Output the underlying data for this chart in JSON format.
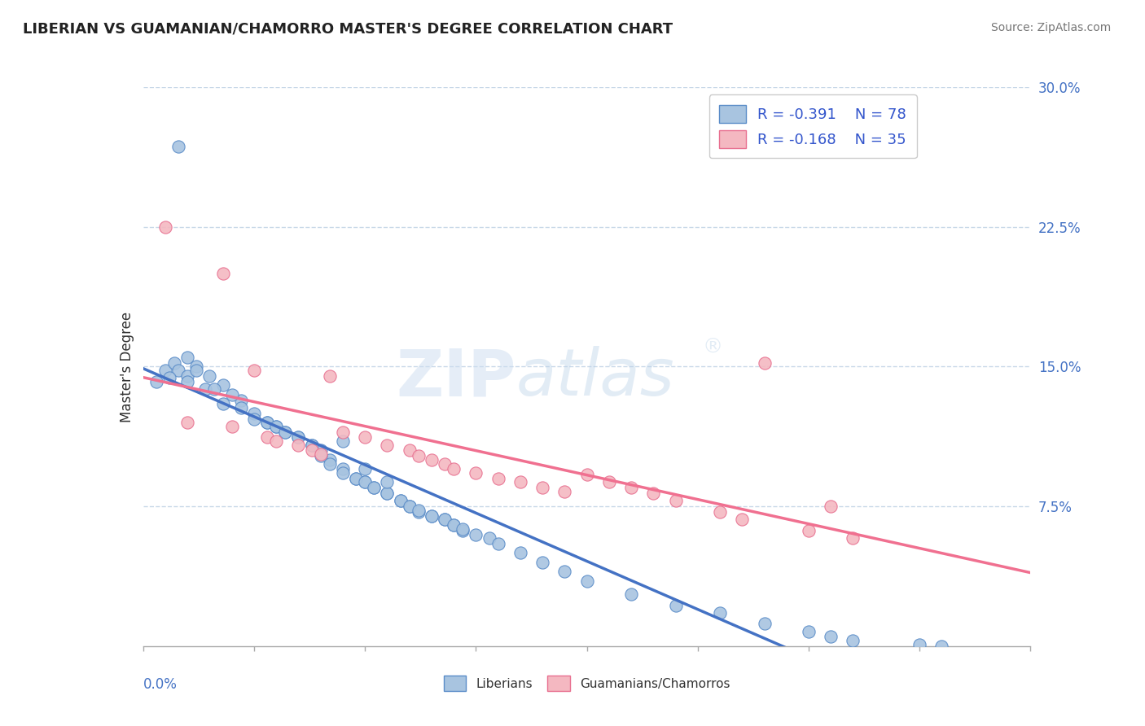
{
  "title": "LIBERIAN VS GUAMANIAN/CHAMORRO MASTER'S DEGREE CORRELATION CHART",
  "source": "Source: ZipAtlas.com",
  "ylabel": "Master's Degree",
  "xlim": [
    0.0,
    0.2
  ],
  "ylim": [
    0.0,
    0.3
  ],
  "yticks": [
    0.075,
    0.15,
    0.225,
    0.3
  ],
  "ytick_labels": [
    "7.5%",
    "15.0%",
    "22.5%",
    "30.0%"
  ],
  "legend_r1": "-0.391",
  "legend_n1": "78",
  "legend_r2": "-0.168",
  "legend_n2": "35",
  "color_liberian_fill": "#a8c4e0",
  "color_guamanian_fill": "#f4b8c1",
  "color_liberian_edge": "#5a8cc8",
  "color_guamanian_edge": "#e87090",
  "color_liberian_line": "#4472c4",
  "color_guamanian_line": "#f07090",
  "background_color": "#ffffff",
  "grid_color": "#c8d8e8",
  "watermark_zip": "ZIP",
  "watermark_atlas": "atlas",
  "liberian_x": [
    0.008,
    0.003,
    0.005,
    0.007,
    0.01,
    0.008,
    0.006,
    0.012,
    0.01,
    0.015,
    0.012,
    0.018,
    0.014,
    0.01,
    0.022,
    0.02,
    0.018,
    0.016,
    0.025,
    0.022,
    0.028,
    0.025,
    0.03,
    0.028,
    0.032,
    0.03,
    0.035,
    0.032,
    0.038,
    0.035,
    0.04,
    0.038,
    0.042,
    0.04,
    0.045,
    0.042,
    0.048,
    0.045,
    0.05,
    0.048,
    0.052,
    0.05,
    0.055,
    0.052,
    0.058,
    0.055,
    0.06,
    0.058,
    0.062,
    0.06,
    0.065,
    0.062,
    0.068,
    0.065,
    0.07,
    0.068,
    0.072,
    0.07,
    0.075,
    0.072,
    0.078,
    0.08,
    0.085,
    0.09,
    0.095,
    0.1,
    0.11,
    0.12,
    0.13,
    0.14,
    0.15,
    0.155,
    0.16,
    0.175,
    0.18,
    0.045,
    0.05,
    0.055
  ],
  "liberian_y": [
    0.268,
    0.142,
    0.148,
    0.152,
    0.155,
    0.148,
    0.144,
    0.15,
    0.145,
    0.145,
    0.148,
    0.14,
    0.138,
    0.142,
    0.132,
    0.135,
    0.13,
    0.138,
    0.125,
    0.128,
    0.12,
    0.122,
    0.118,
    0.12,
    0.115,
    0.118,
    0.112,
    0.115,
    0.108,
    0.112,
    0.105,
    0.108,
    0.1,
    0.102,
    0.095,
    0.098,
    0.09,
    0.093,
    0.088,
    0.09,
    0.085,
    0.088,
    0.082,
    0.085,
    0.078,
    0.082,
    0.075,
    0.078,
    0.072,
    0.075,
    0.07,
    0.073,
    0.068,
    0.07,
    0.065,
    0.068,
    0.062,
    0.065,
    0.06,
    0.063,
    0.058,
    0.055,
    0.05,
    0.045,
    0.04,
    0.035,
    0.028,
    0.022,
    0.018,
    0.012,
    0.008,
    0.005,
    0.003,
    0.001,
    0.0,
    0.11,
    0.095,
    0.088
  ],
  "guamanian_x": [
    0.005,
    0.01,
    0.018,
    0.02,
    0.025,
    0.028,
    0.03,
    0.035,
    0.038,
    0.04,
    0.042,
    0.045,
    0.05,
    0.055,
    0.06,
    0.062,
    0.065,
    0.068,
    0.07,
    0.075,
    0.08,
    0.085,
    0.09,
    0.095,
    0.1,
    0.105,
    0.11,
    0.115,
    0.12,
    0.13,
    0.135,
    0.14,
    0.15,
    0.155,
    0.16
  ],
  "guamanian_y": [
    0.225,
    0.12,
    0.2,
    0.118,
    0.148,
    0.112,
    0.11,
    0.108,
    0.105,
    0.103,
    0.145,
    0.115,
    0.112,
    0.108,
    0.105,
    0.102,
    0.1,
    0.098,
    0.095,
    0.093,
    0.09,
    0.088,
    0.085,
    0.083,
    0.092,
    0.088,
    0.085,
    0.082,
    0.078,
    0.072,
    0.068,
    0.152,
    0.062,
    0.075,
    0.058
  ]
}
